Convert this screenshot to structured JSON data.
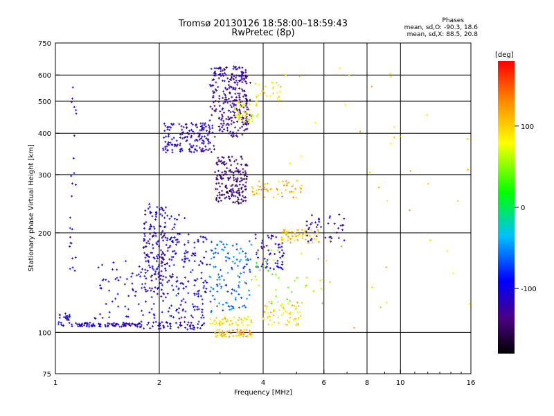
{
  "header": {
    "title_line1": "Tromsø 20130126 18:58:00–18:59:43",
    "title_line2": "RwPretec (8p)",
    "stats_title": "Phases",
    "stats_o": "mean, sd,O: -90.3, 18.6",
    "stats_x": "mean, sd,X:  88.5, 20.8"
  },
  "colorbar": {
    "label": "[deg]",
    "ticks": [
      "100",
      "0",
      "-100"
    ],
    "tick_values": [
      100,
      0,
      -100
    ],
    "range": [
      -180,
      180
    ],
    "colors": [
      "#000000",
      "#4b0082",
      "#0000ff",
      "#00bfff",
      "#00ff00",
      "#ffff00",
      "#ff8c00",
      "#ff0000"
    ]
  },
  "chart_data": {
    "type": "scatter",
    "title": "Tromsø 20130126 18:58:00–18:59:43",
    "subtitle": "RwPretec (8p)",
    "xlabel": "Frequency [MHz]",
    "ylabel": "Stationary phase Virtual Height [km]",
    "xscale": "log",
    "yscale": "log",
    "xlim": [
      1,
      16
    ],
    "ylim": [
      75,
      750
    ],
    "x_ticks": [
      1,
      2,
      4,
      6,
      8,
      10,
      16
    ],
    "x_tick_labels": [
      "1",
      "2",
      "4",
      "6",
      "8",
      "10",
      "16"
    ],
    "y_ticks": [
      75,
      100,
      200,
      300,
      400,
      500,
      600,
      750
    ],
    "y_tick_labels": [
      "75",
      "100",
      "200",
      "300",
      "400",
      "500",
      "600",
      "750"
    ],
    "x_grid": [
      2,
      4,
      6,
      8,
      10
    ],
    "y_grid": [
      100,
      200,
      300,
      400,
      500,
      600
    ],
    "colorbar_label": "[deg]",
    "legend": "colorbar right",
    "clusters": [
      {
        "x": [
          1.05,
          1.75
        ],
        "y": [
          104,
          107
        ],
        "phase": -110,
        "count": 90
      },
      {
        "x": [
          1.02,
          1.1
        ],
        "y": [
          105,
          115
        ],
        "phase": -105,
        "count": 20
      },
      {
        "x": [
          1.1,
          1.15
        ],
        "y": [
          150,
          620
        ],
        "phase": -100,
        "count": 25
      },
      {
        "x": [
          1.75,
          2.7
        ],
        "y": [
          102,
          108
        ],
        "phase": -105,
        "count": 60
      },
      {
        "x": [
          1.3,
          2.0
        ],
        "y": [
          110,
          165
        ],
        "phase": -100,
        "count": 70
      },
      {
        "x": [
          1.8,
          2.1
        ],
        "y": [
          130,
          245
        ],
        "phase": -110,
        "count": 150
      },
      {
        "x": [
          2.1,
          2.5
        ],
        "y": [
          110,
          200
        ],
        "phase": -95,
        "count": 70
      },
      {
        "x": [
          2.5,
          2.75
        ],
        "y": [
          110,
          200
        ],
        "phase": -100,
        "count": 60
      },
      {
        "x": [
          2.0,
          2.4
        ],
        "y": [
          115,
          230
        ],
        "phase": -105,
        "count": 60
      },
      {
        "x": [
          2.05,
          2.9
        ],
        "y": [
          350,
          430
        ],
        "phase": -110,
        "count": 160
      },
      {
        "x": [
          2.8,
          3.6
        ],
        "y": [
          390,
          640
        ],
        "phase": -120,
        "count": 220
      },
      {
        "x": [
          3.2,
          3.7
        ],
        "y": [
          420,
          600
        ],
        "phase": -140,
        "count": 60
      },
      {
        "x": [
          3.3,
          3.9
        ],
        "y": [
          430,
          500
        ],
        "phase": 80,
        "count": 50
      },
      {
        "x": [
          2.9,
          3.6
        ],
        "y": [
          245,
          340
        ],
        "phase": -140,
        "count": 180
      },
      {
        "x": [
          2.9,
          3.7
        ],
        "y": [
          97,
          102
        ],
        "phase": 110,
        "count": 60
      },
      {
        "x": [
          2.8,
          3.7
        ],
        "y": [
          105,
          112
        ],
        "phase": 90,
        "count": 50
      },
      {
        "x": [
          2.8,
          3.7
        ],
        "y": [
          115,
          190
        ],
        "phase": -60,
        "count": 120
      },
      {
        "x": [
          3.8,
          4.6
        ],
        "y": [
          155,
          200
        ],
        "phase": -110,
        "count": 60
      },
      {
        "x": [
          4.5,
          5.8
        ],
        "y": [
          185,
          205
        ],
        "phase": 100,
        "count": 60
      },
      {
        "x": [
          4.0,
          5.2
        ],
        "y": [
          105,
          125
        ],
        "phase": 90,
        "count": 60
      },
      {
        "x": [
          3.7,
          5.2
        ],
        "y": [
          255,
          290
        ],
        "phase": 110,
        "count": 50
      },
      {
        "x": [
          5.3,
          6.9
        ],
        "y": [
          185,
          230
        ],
        "phase": -120,
        "count": 40
      },
      {
        "x": [
          3.8,
          4.5
        ],
        "y": [
          500,
          570
        ],
        "phase": 90,
        "count": 25
      },
      {
        "x": [
          3.7,
          6.0
        ],
        "y": [
          120,
          180
        ],
        "phase": 50,
        "count": 40
      },
      {
        "x": [
          4.5,
          16
        ],
        "y": [
          100,
          650
        ],
        "phase": 100,
        "count": 45
      }
    ]
  }
}
